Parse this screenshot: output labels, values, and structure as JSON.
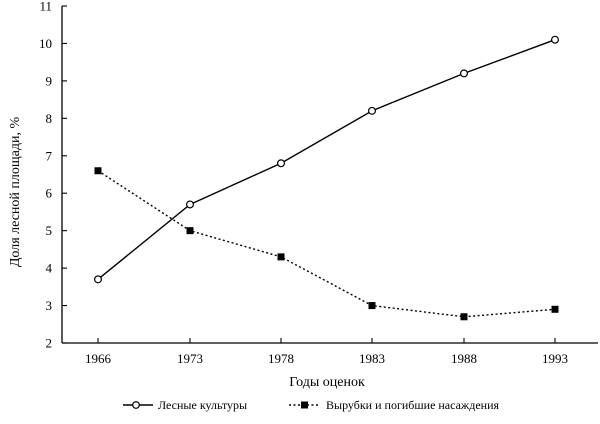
{
  "chart_data": {
    "type": "line",
    "categories": [
      "1966",
      "1973",
      "1978",
      "1983",
      "1988",
      "1993"
    ],
    "series": [
      {
        "name": "Лесные культуры",
        "values": [
          3.7,
          5.7,
          6.8,
          8.2,
          9.2,
          10.1
        ],
        "marker": "open-circle",
        "line_style": "solid",
        "color": "#000000"
      },
      {
        "name": "Вырубки и погибшие насаждения",
        "values": [
          6.6,
          5.0,
          4.3,
          3.0,
          2.7,
          2.9
        ],
        "marker": "filled-square",
        "line_style": "dotted",
        "color": "#000000"
      }
    ],
    "xlabel": "Годы оценок",
    "ylabel": "Доля лесной площади, %",
    "ylim": [
      2,
      11
    ],
    "yticks": [
      2,
      3,
      4,
      5,
      6,
      7,
      8,
      9,
      10,
      11
    ],
    "grid": false,
    "legend_position": "bottom-center"
  }
}
